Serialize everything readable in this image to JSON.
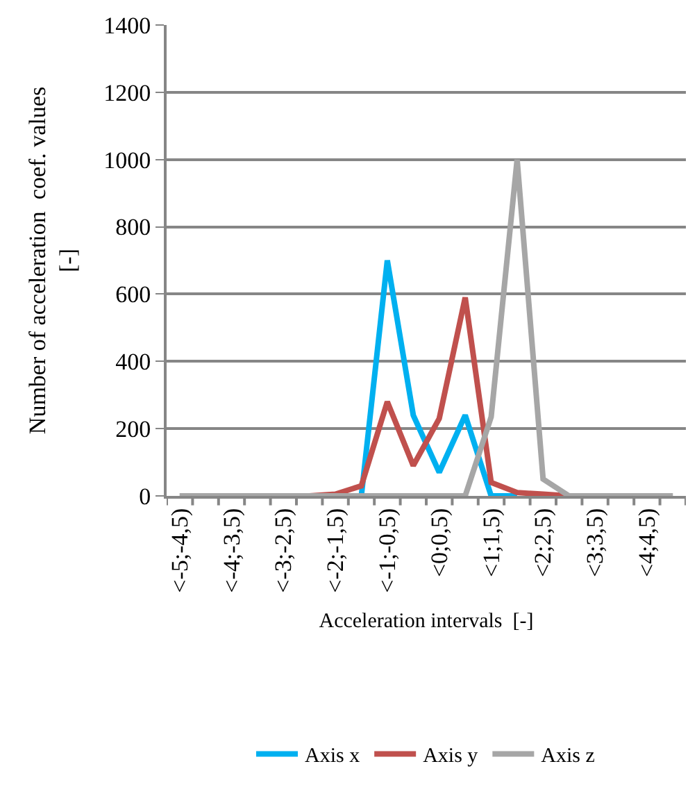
{
  "chart_data": {
    "type": "line",
    "xlabel": "Acceleration intervals  [-]",
    "ylabel": "Number of acceleration  coef. values\n[-]",
    "categories": [
      "<-5;-4,5)",
      null,
      "<-4;-3,5)",
      null,
      "<-3;-2,5)",
      null,
      "<-2;-1,5)",
      null,
      "<-1;-0,5)",
      null,
      "<0;0,5)",
      null,
      "<1;1,5)",
      null,
      "<2;2,5)",
      null,
      "<3;3,5)",
      null,
      "<4;4,5)",
      null
    ],
    "series": [
      {
        "name": "Axis x",
        "color": "#00b0f0",
        "values": [
          null,
          null,
          null,
          null,
          null,
          null,
          null,
          0,
          700,
          240,
          70,
          240,
          0,
          0,
          null,
          null,
          null,
          null,
          null,
          null
        ]
      },
      {
        "name": "Axis y",
        "color": "#c0504d",
        "values": [
          null,
          null,
          null,
          null,
          0,
          0,
          5,
          30,
          280,
          90,
          230,
          590,
          40,
          10,
          5,
          0,
          0,
          null,
          null,
          null
        ]
      },
      {
        "name": "Axis z",
        "color": "#a6a6a6",
        "values": [
          0,
          0,
          0,
          0,
          0,
          0,
          0,
          0,
          0,
          0,
          0,
          0,
          235,
          1000,
          50,
          0,
          0,
          0,
          0,
          0
        ]
      }
    ],
    "ylim": [
      0,
      1400
    ],
    "yticks": [
      0,
      200,
      400,
      600,
      800,
      1000,
      1200,
      1400
    ],
    "grid": "y",
    "legend": "bottom",
    "marker": "none",
    "line_style": "solid"
  }
}
